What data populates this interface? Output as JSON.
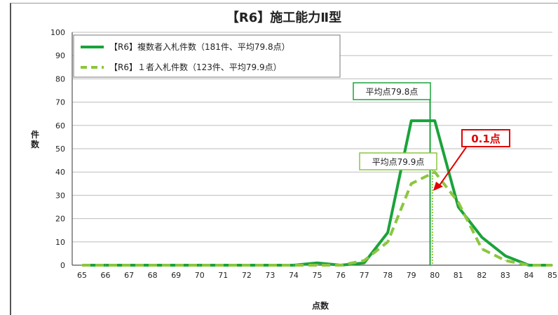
{
  "chart_data": {
    "type": "line",
    "title": "【R6】施工能力Ⅱ型",
    "xlabel": "点数",
    "ylabel": "件数",
    "ylim": [
      0,
      100
    ],
    "yticks": [
      0,
      10,
      20,
      30,
      40,
      50,
      60,
      70,
      80,
      90,
      100
    ],
    "x": [
      65,
      66,
      67,
      68,
      69,
      70,
      71,
      72,
      73,
      74,
      75,
      76,
      77,
      78,
      79,
      80,
      81,
      82,
      83,
      84,
      85
    ],
    "grid": true,
    "legend_position": "top-left",
    "series": [
      {
        "name": "【R6】複数者入札件数（181件、平均79.8点）",
        "style": "solid",
        "color": "#1aa33a",
        "values": [
          0,
          0,
          0,
          0,
          0,
          0,
          0,
          0,
          0,
          0,
          1,
          0,
          1,
          14,
          62,
          62,
          25,
          12,
          4,
          0,
          0
        ]
      },
      {
        "name": "【R6】１者入札件数（123件、平均79.9点）",
        "style": "dashed",
        "color": "#8cc63e",
        "values": [
          0,
          0,
          0,
          0,
          0,
          0,
          0,
          0,
          0,
          0,
          0,
          0,
          2,
          10,
          35,
          40,
          27,
          7,
          2,
          0,
          0
        ]
      }
    ],
    "annotations": [
      {
        "text": "平均点79.8点",
        "x": 79.8,
        "style": "solid",
        "color": "#1aa33a"
      },
      {
        "text": "平均点79.9点",
        "x": 79.9,
        "style": "dotted",
        "color": "#8cc63e"
      },
      {
        "text": "0.1点",
        "color": "#e00000"
      }
    ]
  }
}
